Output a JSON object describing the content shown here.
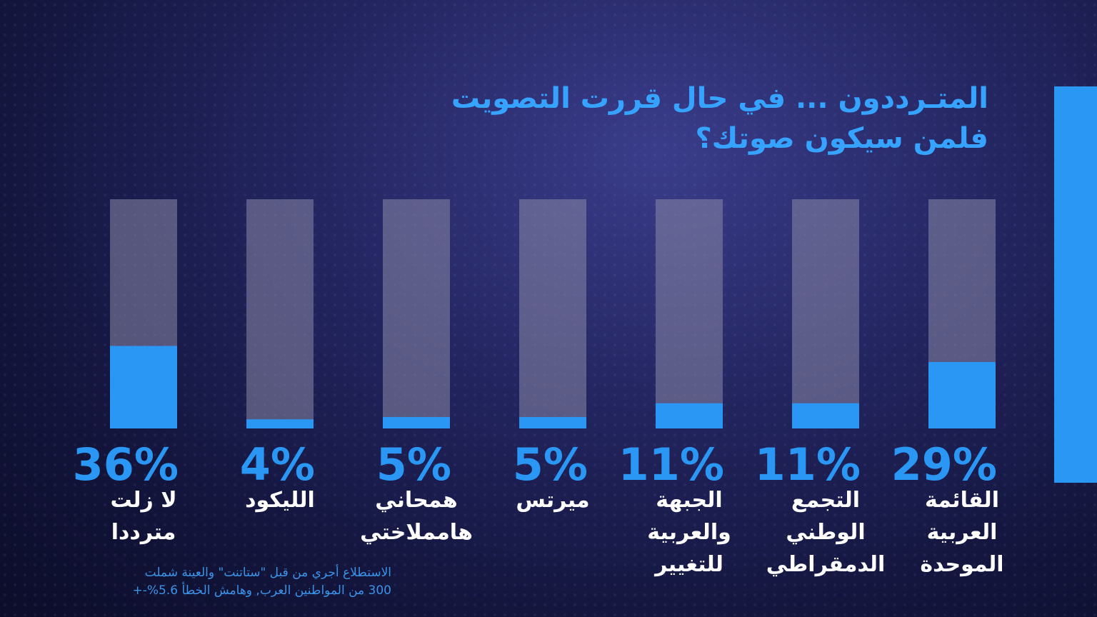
{
  "title": {
    "line1": "المتـرددون ... في حال قررت التصويت",
    "line2": "فلمن سيكون صوتك؟"
  },
  "note": {
    "line1": "الاستطلاع أجري من قبل \"ستاتنت\" والعينة شملت",
    "line2": "300 من المواطنين العرب, وهامش الخطأ 5.6%-+"
  },
  "colors": {
    "accent": "#2a97f5",
    "bar_track": "#8a89a8",
    "title": "#35a3ff",
    "label": "#ffffff"
  },
  "chart_data": {
    "type": "bar",
    "orientation": "vertical",
    "direction": "right-to-left",
    "ylim": [
      0,
      100
    ],
    "unit": "%",
    "bars": [
      {
        "label_lines": [
          "القائمة",
          "العربية",
          "الموحدة"
        ],
        "value": 29,
        "value_label": "29%"
      },
      {
        "label_lines": [
          "التجمع",
          "الوطني",
          "الدمقراطي"
        ],
        "value": 11,
        "value_label": "11%"
      },
      {
        "label_lines": [
          "الجبهة",
          "والعربية",
          "للتغيير"
        ],
        "value": 11,
        "value_label": "11%"
      },
      {
        "label_lines": [
          "ميرتس"
        ],
        "value": 5,
        "value_label": "5%"
      },
      {
        "label_lines": [
          "همحاني",
          "هامملاختي"
        ],
        "value": 5,
        "value_label": "5%"
      },
      {
        "label_lines": [
          "الليكود"
        ],
        "value": 4,
        "value_label": "4%"
      },
      {
        "label_lines": [
          "لا زلت",
          "مترددا"
        ],
        "value": 36,
        "value_label": "36%"
      }
    ]
  }
}
